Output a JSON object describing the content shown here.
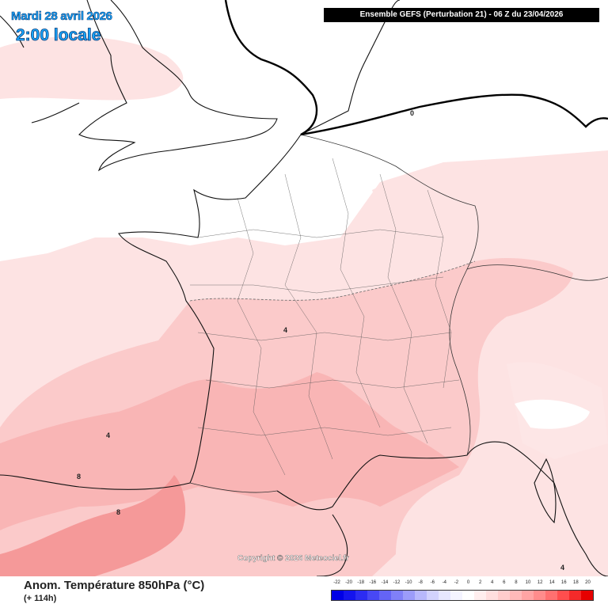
{
  "header": {
    "date_label": "Mardi 28 avril 2026",
    "time_label": "2:00 locale",
    "run_label": "Ensemble GEFS  (Perturbation 21)  -  06 Z du 23/04/2026"
  },
  "copyright": "Copyright © 2026 Meteociel.fr",
  "footer": {
    "variable_title": "Anom. Température 850hPa (°C)",
    "lead_time": "(+ 114h)"
  },
  "colorscale": {
    "ticks": [
      "-22",
      "-20",
      "-18",
      "-16",
      "-14",
      "-12",
      "-10",
      "-8",
      "-6",
      "-4",
      "-2",
      "0",
      "2",
      "4",
      "6",
      "8",
      "10",
      "12",
      "14",
      "16",
      "18",
      "20"
    ],
    "colors": [
      "#0000e6",
      "#1414ee",
      "#2c2cf2",
      "#4848f4",
      "#6464f6",
      "#8080f8",
      "#9c9cfa",
      "#b8b8fc",
      "#d2d2fd",
      "#e6e6fe",
      "#f4f4ff",
      "#ffffff",
      "#ffeeee",
      "#ffdede",
      "#ffcccc",
      "#ffb9b9",
      "#ffa4a4",
      "#ff8c8c",
      "#ff7070",
      "#ff4e4e",
      "#f52a2a",
      "#e60000"
    ]
  },
  "contour_labels": [
    "0",
    "4",
    "4",
    "4",
    "8",
    "8"
  ]
}
